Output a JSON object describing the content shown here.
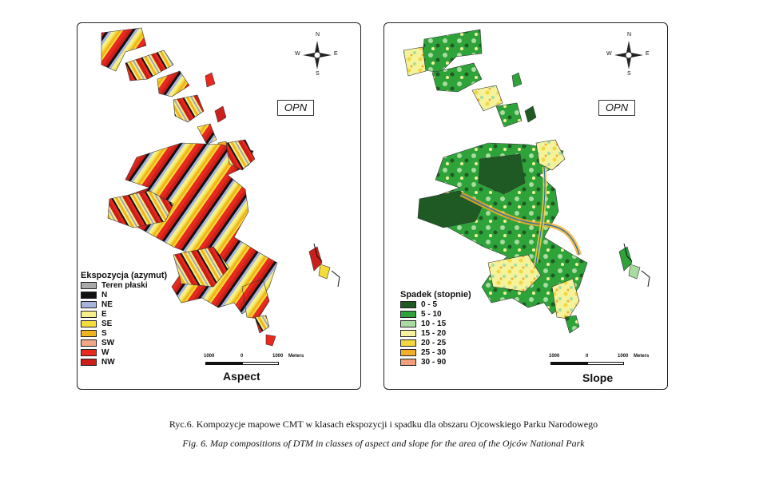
{
  "aspect_panel": {
    "title": "Aspect",
    "logo": "OPN",
    "compass": {
      "n": "N",
      "e": "E",
      "s": "S",
      "w": "W"
    },
    "scale": {
      "left": "1000",
      "mid": "0",
      "right": "1000",
      "unit": "Meters"
    },
    "legend": {
      "title": "Ekspozycja (azymut)",
      "items": [
        {
          "label": "Teren płaski",
          "color": "#a9a9a9"
        },
        {
          "label": "N",
          "color": "#111111"
        },
        {
          "label": "NE",
          "color": "#a7b4dc"
        },
        {
          "label": "E",
          "color": "#f5ef8a"
        },
        {
          "label": "SE",
          "color": "#f4dc3a"
        },
        {
          "label": "S",
          "color": "#f0b41e"
        },
        {
          "label": "SW",
          "color": "#f2a888"
        },
        {
          "label": "W",
          "color": "#e8291e"
        },
        {
          "label": "NW",
          "color": "#cc1f1a"
        }
      ]
    }
  },
  "slope_panel": {
    "title": "Slope",
    "logo": "OPN",
    "compass": {
      "n": "N",
      "e": "E",
      "s": "S",
      "w": "W"
    },
    "scale": {
      "left": "1000",
      "mid": "0",
      "right": "1000",
      "unit": "Meters"
    },
    "legend": {
      "title": "Spadek (stopnie)",
      "items": [
        {
          "label": "0 - 5",
          "color": "#1f5a24"
        },
        {
          "label": "5 - 10",
          "color": "#2ea33a"
        },
        {
          "label": "10 - 15",
          "color": "#a9dca0"
        },
        {
          "label": "15 - 20",
          "color": "#f4f29a"
        },
        {
          "label": "20 - 25",
          "color": "#f4d640"
        },
        {
          "label": "25 - 30",
          "color": "#f2ae2a"
        },
        {
          "label": "30 - 90",
          "color": "#f0a07a"
        }
      ]
    }
  },
  "captions": {
    "pl": "Ryc.6. Kompozycje mapowe CMT w klasach ekspozycji i spadku dla obszaru Ojcowskiego Parku Narodowego",
    "en": "Fig. 6. Map compositions of DTM  in classes of aspect and slope for the area of the Ojców National Park"
  }
}
